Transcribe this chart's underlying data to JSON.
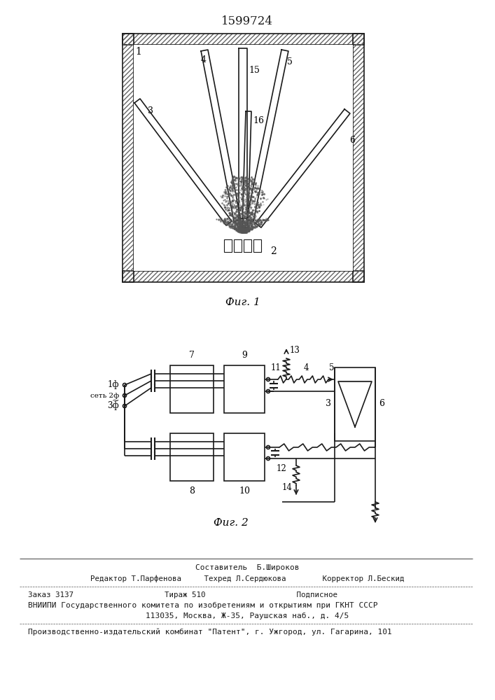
{
  "title": "1599724",
  "fig1_caption": "Фиг. 1",
  "fig2_caption": "Фиг. 2",
  "line_color": "#1a1a1a",
  "footer_lines": [
    "Составитель  Б.Широков",
    "Редактор Т.Парфенова     Техред Л.Сердюкова        Корректор Л.Бескид",
    "Заказ 3137                    Тираж 510                    Подписное",
    "ВНИИПИ Государственного комитета по изобретениям и открытиям при ГКНТ СССР",
    "113035, Москва, Ж-35, Раушская наб., д. 4/5",
    "Производственно-издательский комбинат \"Патент\", г. Ужгород, ул. Гагарина, 101"
  ]
}
